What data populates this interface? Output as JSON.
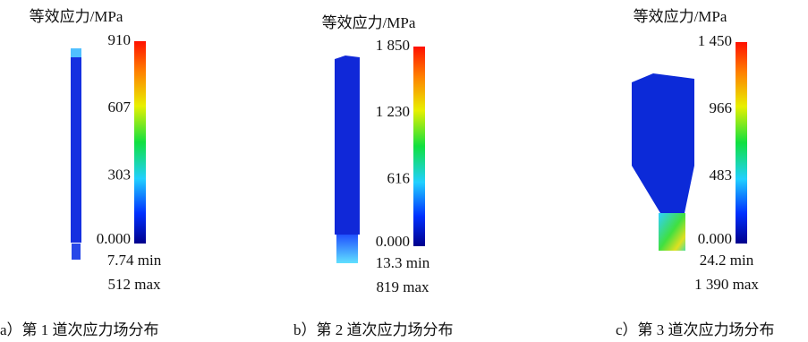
{
  "panels": [
    {
      "title": "等效应力/MPa",
      "scale": [
        "910",
        "607",
        "303",
        "0.000"
      ],
      "min": "7.74 min",
      "max": "512 max",
      "caption": "a）第 1 道次应力场分布"
    },
    {
      "title": "等效应力/MPa",
      "scale": [
        "1 850",
        "1 230",
        "616",
        "0.000"
      ],
      "min": "13.3 min",
      "max": "819 max",
      "caption": "b）第 2 道次应力场分布"
    },
    {
      "title": "等效应力/MPa",
      "scale": [
        "1 450",
        "966",
        "483",
        "0.000"
      ],
      "min": "24.2 min",
      "max": "1 390 max",
      "caption": "c）第 3 道次应力场分布"
    }
  ]
}
